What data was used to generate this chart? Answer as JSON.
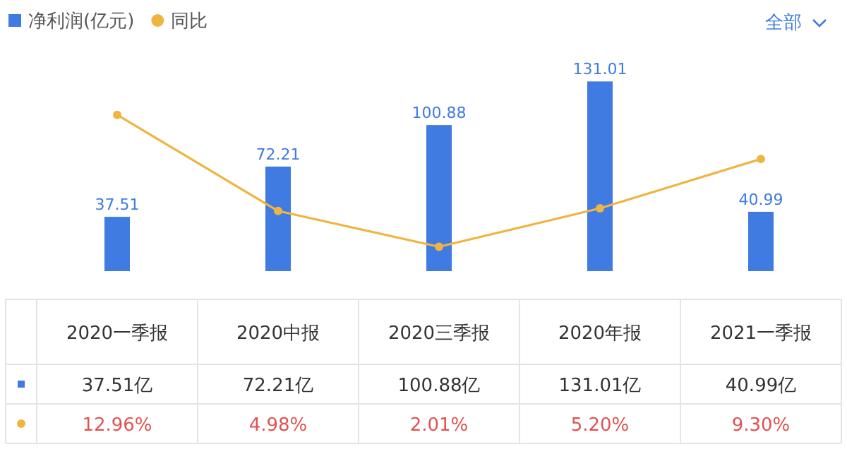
{
  "chart_data": {
    "type": "bar",
    "categories": [
      "2020一季报",
      "2020中报",
      "2020三季报",
      "2020年报",
      "2021一季报"
    ],
    "series": [
      {
        "name": "净利润(亿元)",
        "color": "#3f7be0",
        "values": [
          37.51,
          72.21,
          100.88,
          131.01,
          40.99
        ],
        "value_labels": [
          "37.51",
          "72.21",
          "100.88",
          "131.01",
          "40.99"
        ]
      },
      {
        "name": "同比",
        "type": "line",
        "axis": "y2",
        "color": "#f0b440",
        "values": [
          12.96,
          4.98,
          2.01,
          5.2,
          9.3
        ],
        "value_labels": [
          "12.96%",
          "4.98%",
          "2.01%",
          "5.20%",
          "9.30%"
        ]
      }
    ],
    "legend": "top left",
    "marker": "circle",
    "annotations": [
      "全部",
      "37.51亿",
      "72.21亿",
      "100.88亿",
      "131.01亿",
      "40.99亿"
    ]
  }
}
